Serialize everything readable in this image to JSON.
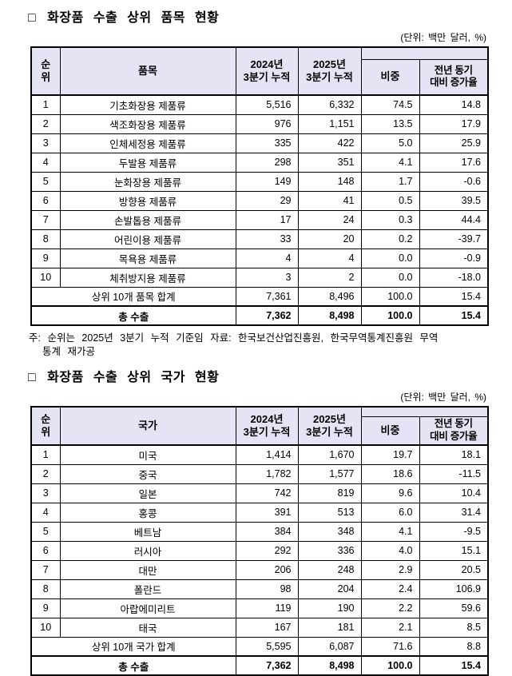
{
  "unit_label": "(단위: 백만 달러, %)",
  "colors": {
    "header_bg": "#E4E4F4",
    "border": "#000000",
    "text": "#000000"
  },
  "section1": {
    "bullet": "□",
    "title": "화장품 수출 상위 품목 현황",
    "note": "주: 순위는 2025년 3분기 누적 기준임 자료: 한국보건산업진흥원, 한국무역통계진흥원 무역\n통계 재가공",
    "table": {
      "headers": {
        "rank": "순\n위",
        "name": "품목",
        "v2024": "2024년\n3분기 누적",
        "v2025": "2025년\n3분기 누적",
        "share": "비중",
        "yoy": "전년 동기\n대비 증가율"
      },
      "rows": [
        {
          "rank": "1",
          "name": "기초화장용 제품류",
          "v2024": "5,516",
          "v2025": "6,332",
          "share": "74.5",
          "yoy": "14.8"
        },
        {
          "rank": "2",
          "name": "색조화장용 제품류",
          "v2024": "976",
          "v2025": "1,151",
          "share": "13.5",
          "yoy": "17.9"
        },
        {
          "rank": "3",
          "name": "인체세정용 제품류",
          "v2024": "335",
          "v2025": "422",
          "share": "5.0",
          "yoy": "25.9"
        },
        {
          "rank": "4",
          "name": "두발용 제품류",
          "v2024": "298",
          "v2025": "351",
          "share": "4.1",
          "yoy": "17.6"
        },
        {
          "rank": "5",
          "name": "눈화장용 제품류",
          "v2024": "149",
          "v2025": "148",
          "share": "1.7",
          "yoy": "-0.6"
        },
        {
          "rank": "6",
          "name": "방향용 제품류",
          "v2024": "29",
          "v2025": "41",
          "share": "0.5",
          "yoy": "39.5"
        },
        {
          "rank": "7",
          "name": "손발톱용 제품류",
          "v2024": "17",
          "v2025": "24",
          "share": "0.3",
          "yoy": "44.4"
        },
        {
          "rank": "8",
          "name": "어린이용 제품류",
          "v2024": "33",
          "v2025": "20",
          "share": "0.2",
          "yoy": "-39.7"
        },
        {
          "rank": "9",
          "name": "목욕용 제품류",
          "v2024": "4",
          "v2025": "4",
          "share": "0.0",
          "yoy": "-0.9"
        },
        {
          "rank": "10",
          "name": "체취방지용 제품류",
          "v2024": "3",
          "v2025": "2",
          "share": "0.0",
          "yoy": "-18.0"
        }
      ],
      "subtotal": {
        "label": "상위 10개 품목 합계",
        "v2024": "7,361",
        "v2025": "8,496",
        "share": "100.0",
        "yoy": "15.4"
      },
      "total": {
        "label": "총 수출",
        "v2024": "7,362",
        "v2025": "8,498",
        "share": "100.0",
        "yoy": "15.4"
      }
    }
  },
  "section2": {
    "bullet": "□",
    "title": "화장품 수출 상위 국가 현황",
    "table": {
      "headers": {
        "rank": "순\n위",
        "name": "국가",
        "v2024": "2024년\n3분기 누적",
        "v2025": "2025년\n3분기 누적",
        "share": "비중",
        "yoy": "전년 동기\n대비 증가율"
      },
      "rows": [
        {
          "rank": "1",
          "name": "미국",
          "v2024": "1,414",
          "v2025": "1,670",
          "share": "19.7",
          "yoy": "18.1"
        },
        {
          "rank": "2",
          "name": "중국",
          "v2024": "1,782",
          "v2025": "1,577",
          "share": "18.6",
          "yoy": "-11.5"
        },
        {
          "rank": "3",
          "name": "일본",
          "v2024": "742",
          "v2025": "819",
          "share": "9.6",
          "yoy": "10.4"
        },
        {
          "rank": "4",
          "name": "홍콩",
          "v2024": "391",
          "v2025": "513",
          "share": "6.0",
          "yoy": "31.4"
        },
        {
          "rank": "5",
          "name": "베트남",
          "v2024": "384",
          "v2025": "348",
          "share": "4.1",
          "yoy": "-9.5"
        },
        {
          "rank": "6",
          "name": "러시아",
          "v2024": "292",
          "v2025": "336",
          "share": "4.0",
          "yoy": "15.1"
        },
        {
          "rank": "7",
          "name": "대만",
          "v2024": "206",
          "v2025": "248",
          "share": "2.9",
          "yoy": "20.5"
        },
        {
          "rank": "8",
          "name": "폴란드",
          "v2024": "98",
          "v2025": "204",
          "share": "2.4",
          "yoy": "106.9"
        },
        {
          "rank": "9",
          "name": "아랍에미리트",
          "v2024": "119",
          "v2025": "190",
          "share": "2.2",
          "yoy": "59.6"
        },
        {
          "rank": "10",
          "name": "태국",
          "v2024": "167",
          "v2025": "181",
          "share": "2.1",
          "yoy": "8.5"
        }
      ],
      "subtotal": {
        "label": "상위 10개 국가 합계",
        "v2024": "5,595",
        "v2025": "6,087",
        "share": "71.6",
        "yoy": "8.8"
      },
      "total": {
        "label": "총 수출",
        "v2024": "7,362",
        "v2025": "8,498",
        "share": "100.0",
        "yoy": "15.4"
      }
    }
  }
}
